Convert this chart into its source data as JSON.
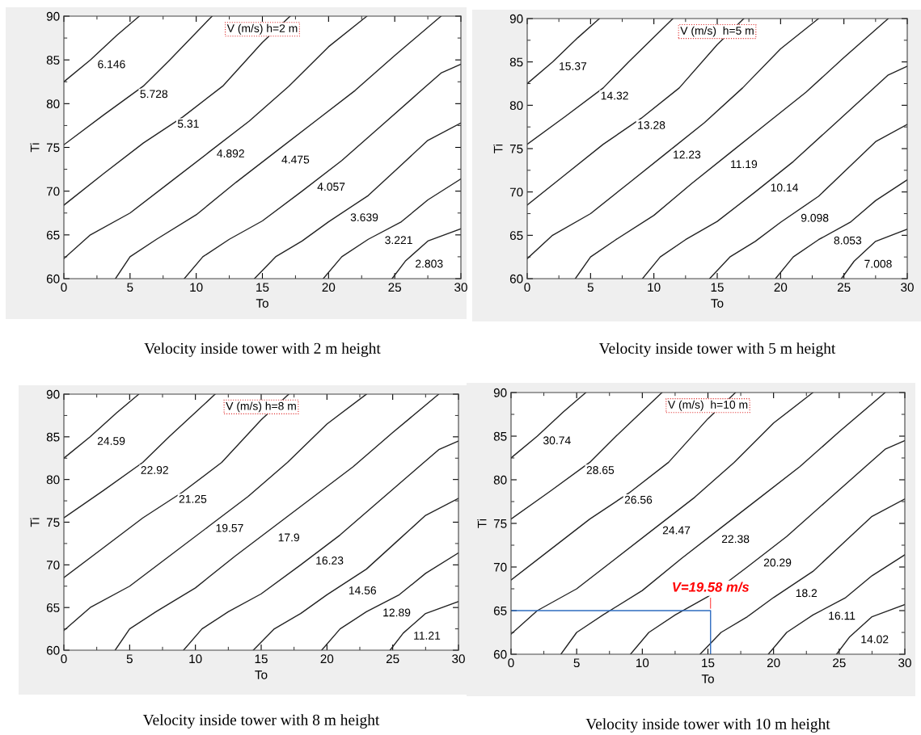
{
  "chart_data": [
    {
      "type": "line",
      "title": "V (m/s) h=2 m",
      "xlabel": "To",
      "ylabel": "Ti",
      "xlim": [
        0,
        30
      ],
      "ylim": [
        60,
        90
      ],
      "xticks": [
        0,
        5,
        10,
        15,
        20,
        25,
        30
      ],
      "yticks": [
        60,
        65,
        70,
        75,
        80,
        85,
        90
      ],
      "grid": false,
      "legend": false,
      "marker": "none",
      "line_style": "solid",
      "series": [
        {
          "color": "#222222",
          "x": [
            0,
            2,
            4,
            5.7
          ],
          "values": [
            82.5,
            85,
            87.8,
            90
          ]
        },
        {
          "color": "#222222",
          "x": [
            0,
            3,
            6,
            8,
            11.2
          ],
          "values": [
            75.3,
            78.7,
            82,
            85,
            90
          ]
        },
        {
          "color": "#222222",
          "x": [
            0,
            3,
            6,
            9,
            12,
            15,
            17.1
          ],
          "values": [
            68.4,
            72,
            75.5,
            78.5,
            82,
            87,
            90
          ]
        },
        {
          "color": "#222222",
          "x": [
            0,
            2,
            5,
            8,
            11,
            14,
            17,
            20,
            22.9
          ],
          "values": [
            62.3,
            65,
            67.5,
            71,
            74.5,
            78,
            82,
            86.5,
            90
          ]
        },
        {
          "color": "#222222",
          "x": [
            3.9,
            5,
            7,
            10,
            13,
            16,
            19,
            22,
            25,
            28.5
          ],
          "values": [
            60,
            62.5,
            64.5,
            67.3,
            71,
            74.5,
            78,
            81.5,
            85.5,
            90
          ]
        },
        {
          "color": "#222222",
          "x": [
            9.1,
            10.5,
            12.5,
            15,
            18,
            21,
            24,
            27,
            28.5,
            30
          ],
          "values": [
            60,
            62.5,
            64.5,
            66.6,
            70,
            73.5,
            77.5,
            81.5,
            83.5,
            84.5
          ]
        },
        {
          "color": "#222222",
          "x": [
            14.4,
            16,
            18,
            20,
            23,
            25.5,
            27.5,
            30
          ],
          "values": [
            60,
            62.5,
            64.3,
            66.5,
            69.5,
            73,
            75.8,
            77.8
          ]
        },
        {
          "color": "#222222",
          "x": [
            19.6,
            21,
            23,
            25.5,
            27.5,
            30
          ],
          "values": [
            60,
            62.5,
            64.5,
            66.5,
            69,
            71.4
          ]
        },
        {
          "color": "#222222",
          "x": [
            24.8,
            25.8,
            27.5,
            30
          ],
          "values": [
            60,
            62,
            64.3,
            65.7
          ]
        }
      ],
      "annotations": [
        {
          "text": "6.146",
          "x": 3.6,
          "y": 84.4
        },
        {
          "text": "5.728",
          "x": 6.8,
          "y": 81
        },
        {
          "text": "5.31",
          "x": 9.4,
          "y": 77.6
        },
        {
          "text": "4.892",
          "x": 12.6,
          "y": 74.2
        },
        {
          "text": "4.475",
          "x": 17.5,
          "y": 73.5
        },
        {
          "text": "4.057",
          "x": 20.2,
          "y": 70.4
        },
        {
          "text": "3.639",
          "x": 22.7,
          "y": 66.9
        },
        {
          "text": "3.221",
          "x": 25.3,
          "y": 64.3
        },
        {
          "text": "2.803",
          "x": 27.6,
          "y": 61.6
        },
        "Velocity inside tower with 2 m height"
      ]
    },
    {
      "type": "line",
      "title": "V (m/s)  h=5 m",
      "xlabel": "To",
      "ylabel": "Ti",
      "xlim": [
        0,
        30
      ],
      "ylim": [
        60,
        90
      ],
      "xticks": [
        0,
        5,
        10,
        15,
        20,
        25,
        30
      ],
      "yticks": [
        60,
        65,
        70,
        75,
        80,
        85,
        90
      ],
      "grid": false,
      "legend": false,
      "marker": "none",
      "line_style": "solid",
      "series": [
        {
          "color": "#222222",
          "x": [
            0,
            2,
            4,
            5.7
          ],
          "values": [
            82.5,
            85,
            87.8,
            90
          ]
        },
        {
          "color": "#222222",
          "x": [
            0,
            3,
            6,
            8,
            11.5
          ],
          "values": [
            75.5,
            78.7,
            82,
            85,
            90
          ]
        },
        {
          "color": "#222222",
          "x": [
            0,
            3,
            6,
            9,
            12,
            15,
            17.1
          ],
          "values": [
            68.5,
            72,
            75.5,
            78.5,
            82,
            87,
            90
          ]
        },
        {
          "color": "#222222",
          "x": [
            0,
            2,
            5,
            8,
            11,
            14,
            17,
            20,
            23
          ],
          "values": [
            62.3,
            65,
            67.5,
            71,
            74.5,
            78,
            82,
            86.5,
            90
          ]
        },
        {
          "color": "#222222",
          "x": [
            3.8,
            5,
            7,
            10,
            13,
            16,
            19,
            22,
            25,
            28.5
          ],
          "values": [
            60,
            62.5,
            64.5,
            67.3,
            71,
            74.5,
            78,
            81.5,
            85.5,
            90
          ]
        },
        {
          "color": "#222222",
          "x": [
            9.1,
            10.5,
            12.5,
            15,
            18,
            21,
            24,
            27,
            28.5,
            30
          ],
          "values": [
            60,
            62.5,
            64.5,
            66.6,
            70,
            73.5,
            77.5,
            81.5,
            83.5,
            84.5
          ]
        },
        {
          "color": "#222222",
          "x": [
            14.4,
            16,
            18,
            20,
            23,
            25.5,
            27.5,
            30
          ],
          "values": [
            60,
            62.5,
            64.3,
            66.5,
            69.5,
            73,
            75.8,
            77.8
          ]
        },
        {
          "color": "#222222",
          "x": [
            19.6,
            21,
            23,
            25.5,
            27.5,
            30
          ],
          "values": [
            60,
            62.5,
            64.5,
            66.5,
            69,
            71.4
          ]
        },
        {
          "color": "#222222",
          "x": [
            24.8,
            25.8,
            27.5,
            30
          ],
          "values": [
            60,
            62,
            64.3,
            65.7
          ]
        }
      ],
      "annotations": [
        {
          "text": "15.37",
          "x": 3.6,
          "y": 84.4
        },
        {
          "text": "14.32",
          "x": 6.9,
          "y": 81
        },
        {
          "text": "13.28",
          "x": 9.8,
          "y": 77.6
        },
        {
          "text": "12.23",
          "x": 12.6,
          "y": 74.2
        },
        {
          "text": "11.19",
          "x": 17.1,
          "y": 73.1
        },
        {
          "text": "10.14",
          "x": 20.3,
          "y": 70.4
        },
        {
          "text": "9.098",
          "x": 22.7,
          "y": 66.9
        },
        {
          "text": "8.053",
          "x": 25.3,
          "y": 64.3
        },
        {
          "text": "7.008",
          "x": 27.7,
          "y": 61.6
        },
        "Velocity inside tower with 5 m height"
      ]
    },
    {
      "type": "line",
      "title": "V (m/s) h=8 m",
      "xlabel": "To",
      "ylabel": "Ti",
      "xlim": [
        0,
        30
      ],
      "ylim": [
        60,
        90
      ],
      "xticks": [
        0,
        5,
        10,
        15,
        20,
        25,
        30
      ],
      "yticks": [
        60,
        65,
        70,
        75,
        80,
        85,
        90
      ],
      "grid": false,
      "legend": false,
      "marker": "none",
      "line_style": "solid",
      "series": [
        {
          "color": "#222222",
          "x": [
            0,
            2,
            4,
            5.7
          ],
          "values": [
            82.5,
            85,
            87.8,
            90
          ]
        },
        {
          "color": "#222222",
          "x": [
            0,
            3,
            6,
            8,
            11.5
          ],
          "values": [
            75.5,
            78.7,
            82,
            85,
            90
          ]
        },
        {
          "color": "#222222",
          "x": [
            0,
            3,
            6,
            9,
            12,
            15,
            17.1
          ],
          "values": [
            68.5,
            72,
            75.5,
            78.5,
            82,
            87,
            90
          ]
        },
        {
          "color": "#222222",
          "x": [
            0,
            2,
            5,
            8,
            11,
            14,
            17,
            20,
            23
          ],
          "values": [
            62.3,
            65,
            67.5,
            71,
            74.5,
            78,
            82,
            86.5,
            90
          ]
        },
        {
          "color": "#222222",
          "x": [
            3.9,
            5,
            7,
            10,
            13,
            16,
            19,
            22,
            25,
            28.5
          ],
          "values": [
            60,
            62.5,
            64.5,
            67.3,
            71,
            74.5,
            78,
            81.5,
            85.5,
            90
          ]
        },
        {
          "color": "#222222",
          "x": [
            9.1,
            10.5,
            12.5,
            15,
            18,
            21,
            24,
            27,
            28.5,
            30
          ],
          "values": [
            60,
            62.5,
            64.5,
            66.6,
            70,
            73.5,
            77.5,
            81.5,
            83.5,
            84.5
          ]
        },
        {
          "color": "#222222",
          "x": [
            14.4,
            16,
            18,
            20,
            23,
            25.5,
            27.5,
            30
          ],
          "values": [
            60,
            62.5,
            64.3,
            66.5,
            69.5,
            73,
            75.8,
            77.8
          ]
        },
        {
          "color": "#222222",
          "x": [
            19.6,
            21,
            23,
            25.5,
            27.5,
            30
          ],
          "values": [
            60,
            62.5,
            64.5,
            66.5,
            69,
            71.4
          ]
        },
        {
          "color": "#222222",
          "x": [
            24.8,
            25.8,
            27.5,
            30
          ],
          "values": [
            60,
            62,
            64.3,
            65.7
          ]
        }
      ],
      "annotations": [
        {
          "text": "24.59",
          "x": 3.6,
          "y": 84.4
        },
        {
          "text": "22.92",
          "x": 6.9,
          "y": 81
        },
        {
          "text": "21.25",
          "x": 9.8,
          "y": 77.6
        },
        {
          "text": "19.57",
          "x": 12.6,
          "y": 74.2
        },
        {
          "text": "17.9",
          "x": 17.1,
          "y": 73.1
        },
        {
          "text": "16.23",
          "x": 20.2,
          "y": 70.4
        },
        {
          "text": "14.56",
          "x": 22.7,
          "y": 66.9
        },
        {
          "text": "12.89",
          "x": 25.3,
          "y": 64.3
        },
        {
          "text": "11.21",
          "x": 27.6,
          "y": 61.6
        },
        "Velocity inside tower with 8 m height"
      ]
    },
    {
      "type": "line",
      "title": "V (m/s)  h=10 m",
      "xlabel": "To",
      "ylabel": "Ti",
      "xlim": [
        0,
        30
      ],
      "ylim": [
        60,
        90
      ],
      "xticks": [
        0,
        5,
        10,
        15,
        20,
        25,
        30
      ],
      "yticks": [
        60,
        65,
        70,
        75,
        80,
        85,
        90
      ],
      "grid": false,
      "legend": false,
      "marker": "none",
      "line_style": "solid",
      "series": [
        {
          "color": "#222222",
          "x": [
            0,
            2,
            4,
            5.7
          ],
          "values": [
            82.5,
            85,
            87.8,
            90
          ]
        },
        {
          "color": "#222222",
          "x": [
            0,
            3,
            6,
            8,
            11.5
          ],
          "values": [
            75.5,
            78.7,
            82,
            85,
            90
          ]
        },
        {
          "color": "#222222",
          "x": [
            0,
            3,
            6,
            9,
            12,
            15,
            17.1
          ],
          "values": [
            68.5,
            72,
            75.5,
            78.5,
            82,
            87,
            90
          ]
        },
        {
          "color": "#222222",
          "x": [
            0,
            2,
            5,
            8,
            11,
            14,
            17,
            20,
            23
          ],
          "values": [
            62.3,
            65,
            67.5,
            71,
            74.5,
            78,
            82,
            86.5,
            90
          ]
        },
        {
          "color": "#222222",
          "x": [
            3.8,
            5,
            7,
            10,
            13,
            16,
            19,
            22,
            25,
            28.5
          ],
          "values": [
            60,
            62.5,
            64.5,
            67.3,
            71,
            74.5,
            78,
            81.5,
            85.5,
            90
          ]
        },
        {
          "color": "#222222",
          "x": [
            9.1,
            10.5,
            12.5,
            15,
            18,
            21,
            24,
            27,
            28.5,
            30
          ],
          "values": [
            60,
            62.5,
            64.5,
            66.6,
            70,
            73.5,
            77.5,
            81.5,
            83.5,
            84.5
          ]
        },
        {
          "color": "#222222",
          "x": [
            14.4,
            16,
            18,
            20,
            23,
            25.5,
            27.5,
            30
          ],
          "values": [
            60,
            62.5,
            64.3,
            66.5,
            69.5,
            73,
            75.8,
            77.8
          ]
        },
        {
          "color": "#222222",
          "x": [
            19.6,
            21,
            23,
            25.5,
            27.5,
            30
          ],
          "values": [
            60,
            62.5,
            64.5,
            66.5,
            69,
            71.4
          ]
        },
        {
          "color": "#222222",
          "x": [
            24.8,
            25.8,
            27.5,
            30
          ],
          "values": [
            60,
            62,
            64.3,
            65.7
          ]
        },
        {
          "color": "#2e6cc0",
          "x": [
            0,
            15.2,
            15.2
          ],
          "values": [
            65,
            65,
            60
          ]
        }
      ],
      "annotations": [
        {
          "text": "30.74",
          "x": 3.5,
          "y": 84.4
        },
        {
          "text": "28.65",
          "x": 6.8,
          "y": 81
        },
        {
          "text": "26.56",
          "x": 9.7,
          "y": 77.6
        },
        {
          "text": "24.47",
          "x": 12.6,
          "y": 74.1
        },
        {
          "text": "22.38",
          "x": 17.1,
          "y": 73.1
        },
        {
          "text": "20.29",
          "x": 20.3,
          "y": 70.4
        },
        {
          "text": "18.2",
          "x": 22.5,
          "y": 66.9
        },
        {
          "text": "16.11",
          "x": 25.2,
          "y": 64.3
        },
        {
          "text": "14.02",
          "x": 27.7,
          "y": 61.6
        },
        {
          "text": "V=19.58 m/s",
          "x": 15.2,
          "y": 65
        },
        "Velocity inside tower with 10 m height"
      ]
    }
  ]
}
